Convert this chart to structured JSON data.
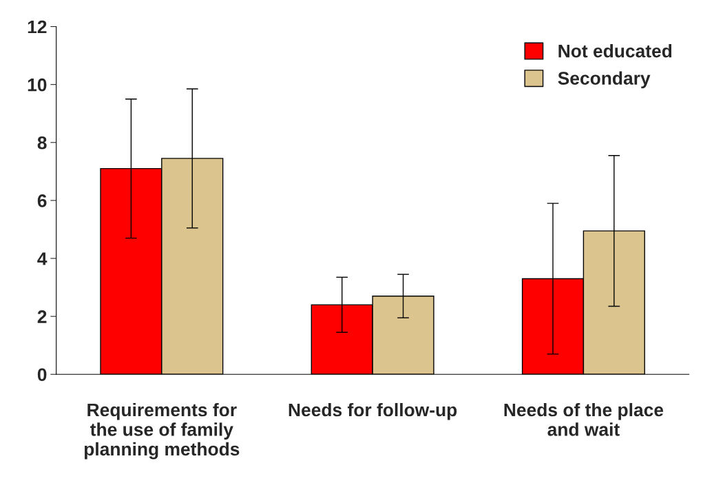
{
  "chart_data": {
    "type": "bar",
    "categories": [
      "Requirements for\nthe use of family\nplanning methods",
      "Needs for follow-up",
      "Needs of the place\nand wait"
    ],
    "series": [
      {
        "name": "Not educated",
        "color": "#ff0000",
        "values": [
          7.1,
          2.4,
          3.3
        ],
        "errors": [
          2.4,
          0.95,
          2.6
        ]
      },
      {
        "name": "Secondary",
        "color": "#dcc48e",
        "values": [
          7.45,
          2.7,
          4.95
        ],
        "errors": [
          2.4,
          0.75,
          2.6
        ]
      }
    ],
    "ylim": [
      0,
      12
    ],
    "yticks": [
      0,
      2,
      4,
      6,
      8,
      10,
      12
    ],
    "grid": false,
    "legend": "top right"
  }
}
